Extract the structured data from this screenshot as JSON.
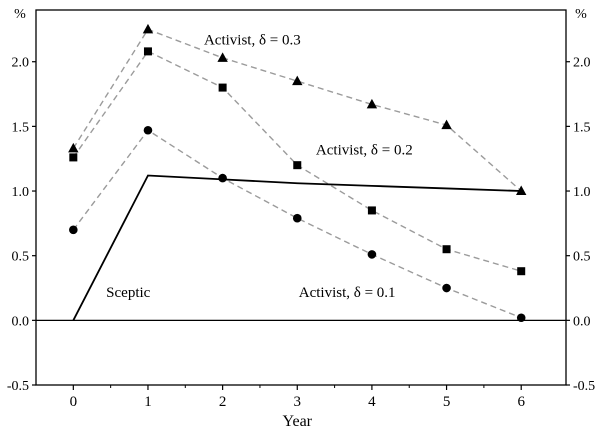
{
  "chart_data": {
    "type": "line",
    "title": "",
    "xlabel": "Year",
    "ylabel_left": "%",
    "ylabel_right": "%",
    "xlim": [
      -0.5,
      6.6
    ],
    "ylim": [
      -0.5,
      2.4
    ],
    "xticks": [
      0,
      1,
      2,
      3,
      4,
      5,
      6
    ],
    "yticks": [
      -0.5,
      0.0,
      0.5,
      1.0,
      1.5,
      2.0
    ],
    "grid": false,
    "legend_position": "none",
    "zero_line": 0.0,
    "colors": {
      "dashed_line": "#9b9b9b",
      "solid_line": "#000000",
      "marker": "#000000",
      "frame": "#000000",
      "background": "#ffffff"
    },
    "x": [
      0,
      1,
      2,
      3,
      4,
      5,
      6
    ],
    "series": [
      {
        "name": "Activist, δ = 0.3",
        "marker": "triangle",
        "line": "dashed",
        "values": [
          1.33,
          2.25,
          2.03,
          1.85,
          1.67,
          1.51,
          1.0
        ]
      },
      {
        "name": "Activist, δ = 0.2",
        "marker": "square",
        "line": "dashed",
        "values": [
          1.26,
          2.08,
          1.8,
          1.2,
          0.85,
          0.55,
          0.38
        ]
      },
      {
        "name": "Activist, δ = 0.1",
        "marker": "circle",
        "line": "dashed",
        "values": [
          0.7,
          1.47,
          1.1,
          0.79,
          0.51,
          0.25,
          0.02
        ]
      },
      {
        "name": "Sceptic",
        "marker": "none",
        "line": "solid",
        "values": [
          0.0,
          1.12,
          1.09,
          1.06,
          1.04,
          1.02,
          1.0
        ]
      }
    ],
    "annotations": [
      {
        "text": "Activist, δ = 0.3",
        "x": 1.75,
        "y": 2.17
      },
      {
        "text": "Activist, δ = 0.2",
        "x": 3.25,
        "y": 1.32
      },
      {
        "text": "Activist, δ = 0.1",
        "x": 3.02,
        "y": 0.22
      },
      {
        "text": "Sceptic",
        "x": 0.44,
        "y": 0.22
      }
    ]
  }
}
